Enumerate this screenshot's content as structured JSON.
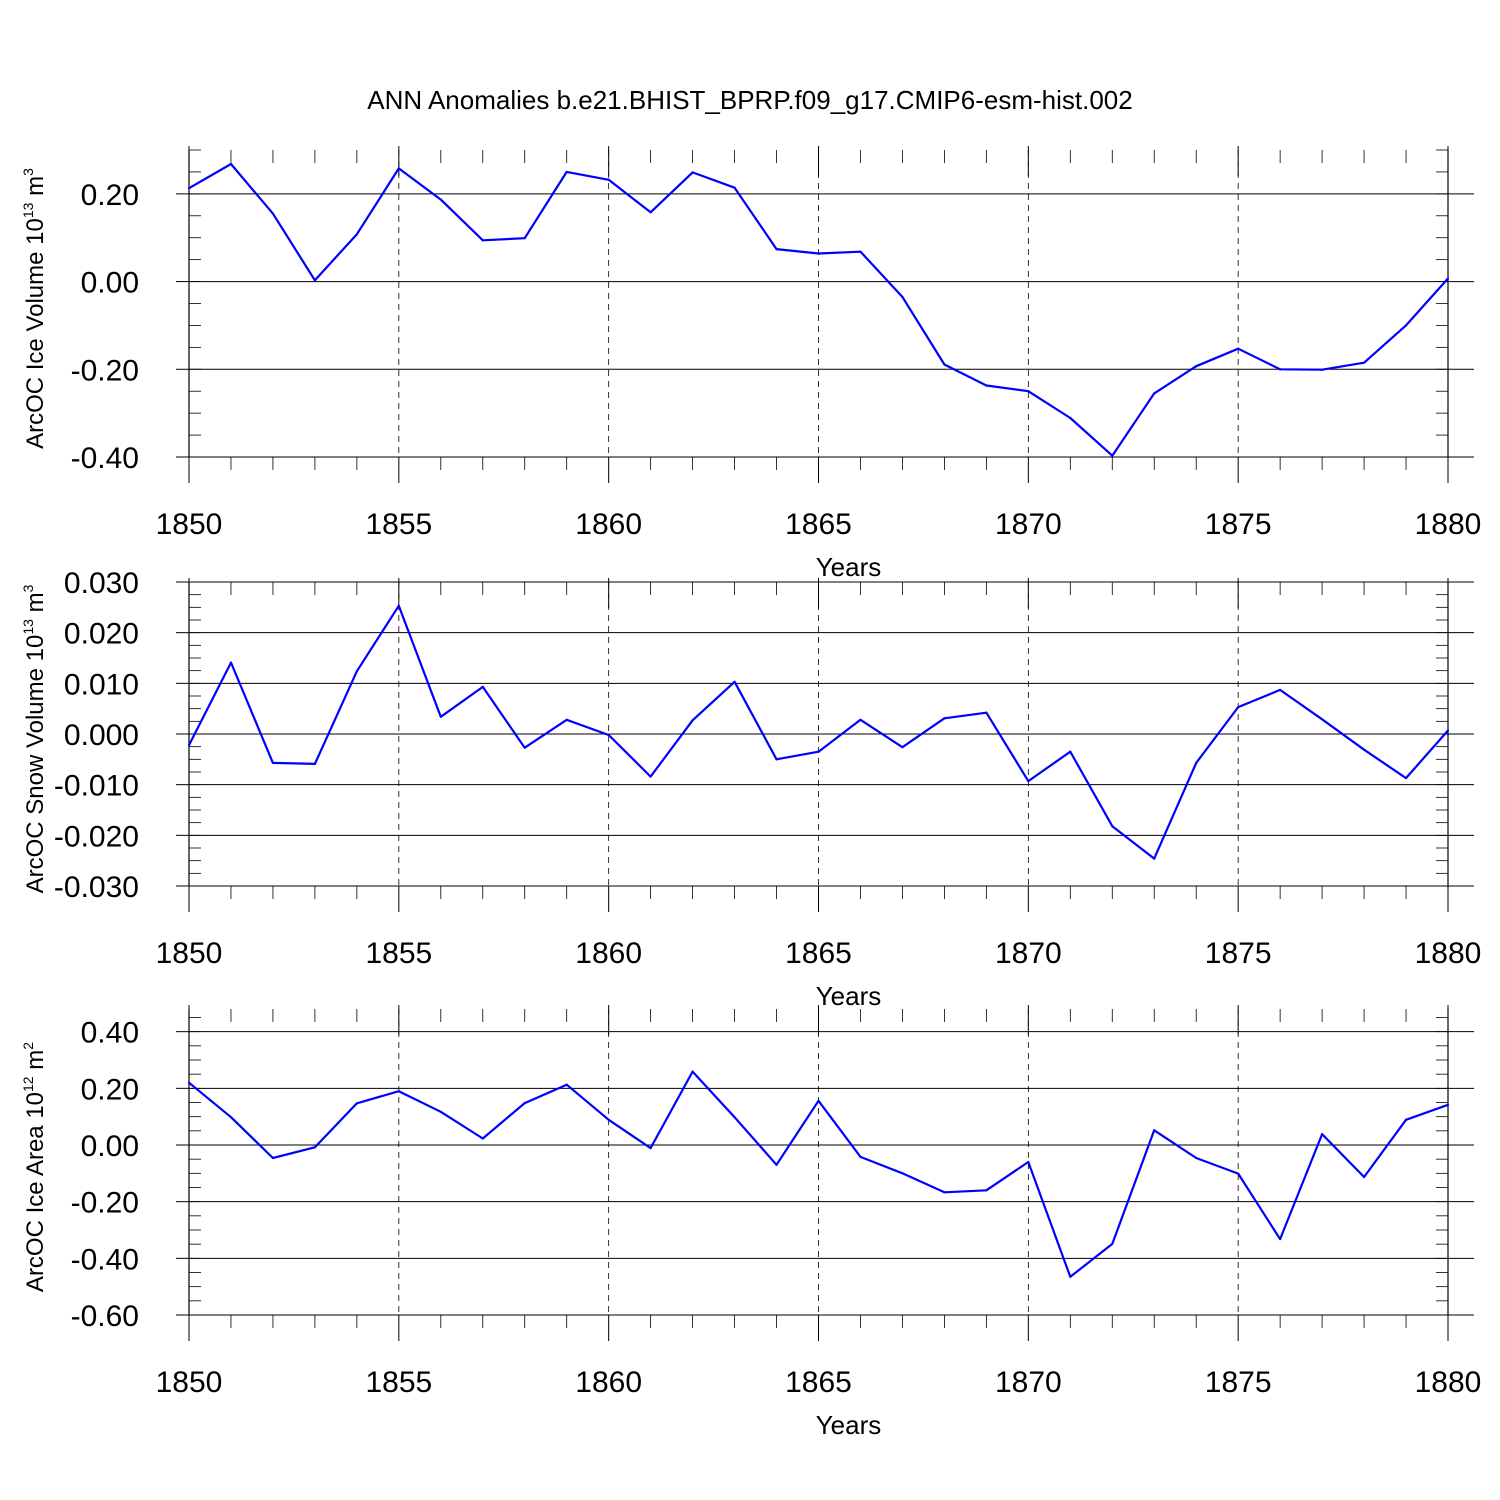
{
  "title": "ANN Anomalies b.e21.BHIST_BPRP.f09_g17.CMIP6-esm-hist.002",
  "colors": {
    "line": "#0000ff",
    "axis": "#000000",
    "grid": "#000000"
  },
  "chart_data": [
    {
      "type": "line",
      "xlabel": "Years",
      "ylabel": {
        "text": "ArcOC Ice Volume 10",
        "exp": "13",
        "unit": " m",
        "unit_exp": "3"
      },
      "xlim": [
        1850,
        1880
      ],
      "ylim": [
        -0.4,
        0.3
      ],
      "xticks": [
        1850,
        1855,
        1860,
        1865,
        1870,
        1875,
        1880
      ],
      "xtick_labels": [
        "1850",
        "1855",
        "1860",
        "1865",
        "1870",
        "1875",
        "1880"
      ],
      "yticks": [
        -0.4,
        -0.2,
        0.0,
        0.2
      ],
      "ytick_labels": [
        "-0.40",
        "-0.20",
        "0.00",
        "0.20"
      ],
      "grid": "dashed vertical at major x ticks",
      "x": [
        1850,
        1851,
        1852,
        1853,
        1854,
        1855,
        1856,
        1857,
        1858,
        1859,
        1860,
        1861,
        1862,
        1863,
        1864,
        1865,
        1866,
        1867,
        1868,
        1869,
        1870,
        1871,
        1872,
        1873,
        1874,
        1875,
        1876,
        1877,
        1878,
        1879,
        1880
      ],
      "values": [
        0.213,
        0.268,
        0.155,
        0.003,
        0.108,
        0.258,
        0.187,
        0.094,
        0.099,
        0.25,
        0.232,
        0.158,
        0.249,
        0.214,
        0.074,
        0.064,
        0.068,
        -0.035,
        -0.189,
        -0.237,
        -0.25,
        -0.311,
        -0.397,
        -0.255,
        -0.193,
        -0.153,
        -0.2,
        -0.201,
        -0.185,
        -0.1,
        0.007
      ]
    },
    {
      "type": "line",
      "xlabel": "Years",
      "ylabel": {
        "text": "ArcOC Snow Volume 10",
        "exp": "13",
        "unit": " m",
        "unit_exp": "3"
      },
      "xlim": [
        1850,
        1880
      ],
      "ylim": [
        -0.03,
        0.03
      ],
      "xticks": [
        1850,
        1855,
        1860,
        1865,
        1870,
        1875,
        1880
      ],
      "xtick_labels": [
        "1850",
        "1855",
        "1860",
        "1865",
        "1870",
        "1875",
        "1880"
      ],
      "yticks": [
        -0.03,
        -0.02,
        -0.01,
        0.0,
        0.01,
        0.02,
        0.03
      ],
      "ytick_labels": [
        "-0.030",
        "-0.020",
        "-0.010",
        "0.000",
        "0.010",
        "0.020",
        "0.030"
      ],
      "grid": "dashed vertical at major x ticks",
      "x": [
        1850,
        1851,
        1852,
        1853,
        1854,
        1855,
        1856,
        1857,
        1858,
        1859,
        1860,
        1861,
        1862,
        1863,
        1864,
        1865,
        1866,
        1867,
        1868,
        1869,
        1870,
        1871,
        1872,
        1873,
        1874,
        1875,
        1876,
        1877,
        1878,
        1879,
        1880
      ],
      "values": [
        -0.0022,
        0.0141,
        -0.0057,
        -0.0059,
        0.0124,
        0.0253,
        0.0034,
        0.0093,
        -0.0027,
        0.0028,
        -0.0002,
        -0.0084,
        0.0027,
        0.0103,
        -0.005,
        -0.0035,
        0.0028,
        -0.0026,
        0.0031,
        0.0042,
        -0.0093,
        -0.0035,
        -0.0182,
        -0.0246,
        -0.0057,
        0.0053,
        0.0087,
        0.0029,
        -0.0031,
        -0.0087,
        0.0007
      ]
    },
    {
      "type": "line",
      "xlabel": "Years",
      "ylabel": {
        "text": "ArcOC Ice Area 10",
        "exp": "12",
        "unit": " m",
        "unit_exp": "2"
      },
      "xlim": [
        1850,
        1880
      ],
      "ylim": [
        -0.6,
        0.48
      ],
      "xticks": [
        1850,
        1855,
        1860,
        1865,
        1870,
        1875,
        1880
      ],
      "xtick_labels": [
        "1850",
        "1855",
        "1860",
        "1865",
        "1870",
        "1875",
        "1880"
      ],
      "yticks": [
        -0.6,
        -0.4,
        -0.2,
        0.0,
        0.2,
        0.4
      ],
      "ytick_labels": [
        "-0.60",
        "-0.40",
        "-0.20",
        "0.00",
        "0.20",
        "0.40"
      ],
      "grid": "dashed vertical at major x ticks",
      "x": [
        1850,
        1851,
        1852,
        1853,
        1854,
        1855,
        1856,
        1857,
        1858,
        1859,
        1860,
        1861,
        1862,
        1863,
        1864,
        1865,
        1866,
        1867,
        1868,
        1869,
        1870,
        1871,
        1872,
        1873,
        1874,
        1875,
        1876,
        1877,
        1878,
        1879,
        1880
      ],
      "values": [
        0.22,
        0.098,
        -0.046,
        -0.008,
        0.147,
        0.19,
        0.117,
        0.023,
        0.148,
        0.213,
        0.089,
        -0.011,
        0.259,
        0.098,
        -0.07,
        0.156,
        -0.042,
        -0.1,
        -0.167,
        -0.16,
        -0.06,
        -0.465,
        -0.349,
        0.052,
        -0.046,
        -0.101,
        -0.332,
        0.038,
        -0.113,
        0.089,
        0.142
      ]
    }
  ]
}
